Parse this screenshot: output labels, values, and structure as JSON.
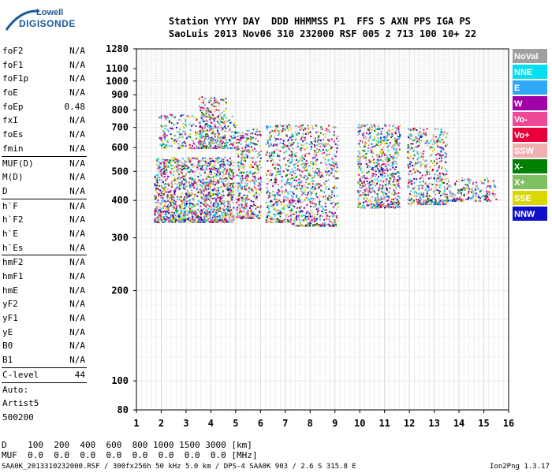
{
  "logo": {
    "line1": "Lowell",
    "line2": "DIGISONDE"
  },
  "header": {
    "row1": "Station YYYY DAY  DDD HHMMSS P1  FFS S AXN PPS IGA PS",
    "row2": "SaoLuis 2013 Nov06 310 232000 RSF 005 2 713 100 10+ 22"
  },
  "params": {
    "group1": [
      {
        "k": "foF2",
        "v": "N/A"
      },
      {
        "k": "foF1",
        "v": "N/A"
      },
      {
        "k": "foF1p",
        "v": "N/A"
      },
      {
        "k": "foE",
        "v": "N/A"
      },
      {
        "k": "foEp",
        "v": "0.48"
      },
      {
        "k": "fxI",
        "v": "N/A"
      },
      {
        "k": "foEs",
        "v": "N/A"
      },
      {
        "k": "fmin",
        "v": "N/A"
      }
    ],
    "group2": [
      {
        "k": "MUF(D)",
        "v": "N/A"
      },
      {
        "k": "M(D)",
        "v": "N/A"
      },
      {
        "k": "D",
        "v": "N/A"
      }
    ],
    "group3": [
      {
        "k": "h`F",
        "v": "N/A"
      },
      {
        "k": "h`F2",
        "v": "N/A"
      },
      {
        "k": "h`E",
        "v": "N/A"
      },
      {
        "k": "h`Es",
        "v": "N/A"
      }
    ],
    "group4": [
      {
        "k": "hmF2",
        "v": "N/A"
      },
      {
        "k": "hmF1",
        "v": "N/A"
      },
      {
        "k": "hmE",
        "v": "N/A"
      },
      {
        "k": "yF2",
        "v": "N/A"
      },
      {
        "k": "yF1",
        "v": "N/A"
      },
      {
        "k": "yE",
        "v": "N/A"
      },
      {
        "k": "B0",
        "v": "N/A"
      },
      {
        "k": "B1",
        "v": "N/A"
      }
    ],
    "clevel": {
      "k": "C-level",
      "v": "44"
    },
    "auto": [
      "Auto:",
      "Artist5",
      "500200"
    ]
  },
  "legend": [
    {
      "label": "NoVal",
      "color": "#a0a0a0"
    },
    {
      "label": "NNE",
      "color": "#00e0f0"
    },
    {
      "label": "E",
      "color": "#30a8f8"
    },
    {
      "label": "W",
      "color": "#a000a8"
    },
    {
      "label": "Vo-",
      "color": "#f04898"
    },
    {
      "label": "Vo+",
      "color": "#e8003a"
    },
    {
      "label": "SSW",
      "color": "#f0b0b0"
    },
    {
      "label": "X-",
      "color": "#008000"
    },
    {
      "label": "X+",
      "color": "#80c060"
    },
    {
      "label": "SSE",
      "color": "#d8d800"
    },
    {
      "label": "NNW",
      "color": "#1010c8"
    }
  ],
  "axes": {
    "y_ticks": [
      "1280",
      "1100",
      "1000",
      "900",
      "800",
      "700",
      "600",
      "500",
      "400",
      "300",
      "200",
      "100",
      "80"
    ],
    "x_ticks": [
      "1",
      "2",
      "3",
      "4",
      "5",
      "6",
      "7",
      "8",
      "9",
      "10",
      "11",
      "12",
      "13",
      "14",
      "15",
      "16"
    ]
  },
  "footer": {
    "d_row": "D    100  200  400  600  800 1000 1500 3000 [km]",
    "muf_row": "MUF  0.0  0.0  0.0  0.0  0.0  0.0  0.0  0.0 [MHz]",
    "info": "SAA0K_2013310232000.RSF / 300fx256h 50 kHz 5.0 km / DPS-4 SAA0K 903 / 2.6 S 315.8 E",
    "version": "Ion2Png 1.3.17"
  }
}
